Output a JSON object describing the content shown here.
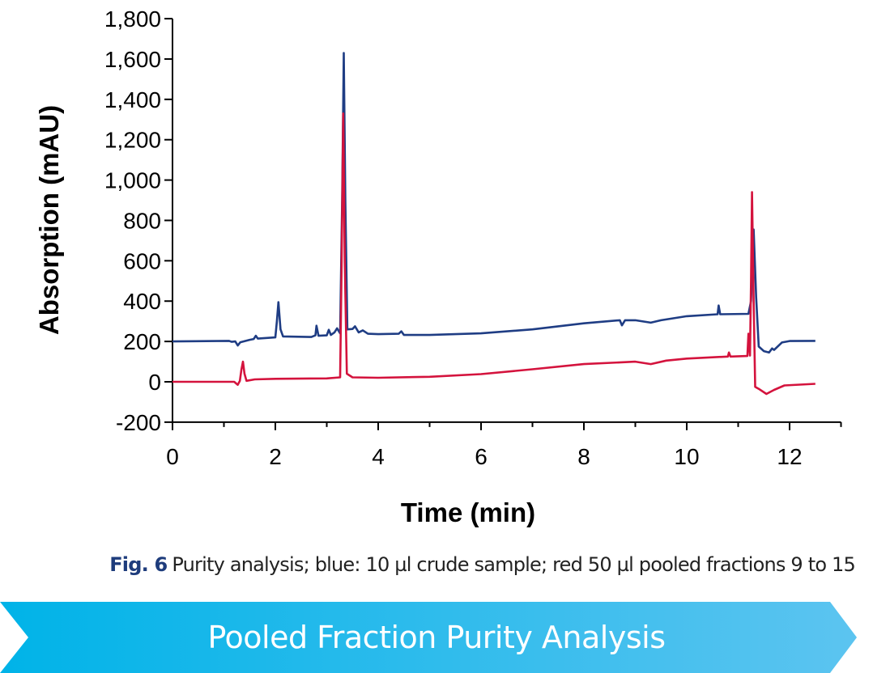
{
  "chart_data": {
    "type": "line",
    "xlabel": "Time (min)",
    "ylabel": "Absorption (mAU)",
    "xlim": [
      0,
      13
    ],
    "ylim": [
      -200,
      1800
    ],
    "xticks": [
      0,
      2,
      4,
      6,
      8,
      10,
      12
    ],
    "yticks": [
      -200,
      0,
      200,
      400,
      600,
      800,
      1000,
      1200,
      1400,
      1600,
      1800
    ],
    "ytick_labels": [
      "-200",
      "0",
      "200",
      "400",
      "600",
      "800",
      "1,000",
      "1,200",
      "1,400",
      "1,600",
      "1,800"
    ],
    "grid": false,
    "series": [
      {
        "color": "#1f3d84",
        "points": [
          [
            0,
            200
          ],
          [
            1.1,
            203
          ],
          [
            1.15,
            198
          ],
          [
            1.22,
            200
          ],
          [
            1.27,
            180
          ],
          [
            1.32,
            196
          ],
          [
            1.5,
            208
          ],
          [
            1.58,
            212
          ],
          [
            1.62,
            228
          ],
          [
            1.66,
            214
          ],
          [
            2.0,
            220
          ],
          [
            2.03,
            300
          ],
          [
            2.06,
            395
          ],
          [
            2.1,
            260
          ],
          [
            2.15,
            225
          ],
          [
            2.7,
            222
          ],
          [
            2.78,
            230
          ],
          [
            2.8,
            278
          ],
          [
            2.84,
            228
          ],
          [
            3.0,
            230
          ],
          [
            3.04,
            258
          ],
          [
            3.08,
            232
          ],
          [
            3.15,
            245
          ],
          [
            3.2,
            265
          ],
          [
            3.26,
            240
          ],
          [
            3.3,
            900
          ],
          [
            3.33,
            1630
          ],
          [
            3.36,
            900
          ],
          [
            3.4,
            260
          ],
          [
            3.5,
            262
          ],
          [
            3.55,
            275
          ],
          [
            3.62,
            245
          ],
          [
            3.7,
            255
          ],
          [
            3.8,
            238
          ],
          [
            4.0,
            236
          ],
          [
            4.4,
            238
          ],
          [
            4.45,
            250
          ],
          [
            4.5,
            232
          ],
          [
            5,
            232
          ],
          [
            6,
            240
          ],
          [
            7,
            260
          ],
          [
            8,
            290
          ],
          [
            8.7,
            305
          ],
          [
            8.74,
            280
          ],
          [
            8.8,
            305
          ],
          [
            9.0,
            305
          ],
          [
            9.3,
            293
          ],
          [
            9.5,
            305
          ],
          [
            10,
            325
          ],
          [
            10.6,
            335
          ],
          [
            10.62,
            378
          ],
          [
            10.65,
            335
          ],
          [
            11.2,
            337
          ],
          [
            11.25,
            400
          ],
          [
            11.3,
            755
          ],
          [
            11.35,
            420
          ],
          [
            11.4,
            175
          ],
          [
            11.5,
            152
          ],
          [
            11.6,
            145
          ],
          [
            11.66,
            165
          ],
          [
            11.7,
            158
          ],
          [
            11.85,
            195
          ],
          [
            12.0,
            202
          ],
          [
            12.5,
            203
          ]
        ]
      },
      {
        "color": "#d4133d",
        "points": [
          [
            0,
            0
          ],
          [
            1.2,
            0
          ],
          [
            1.27,
            -15
          ],
          [
            1.31,
            5
          ],
          [
            1.34,
            60
          ],
          [
            1.37,
            100
          ],
          [
            1.4,
            40
          ],
          [
            1.44,
            5
          ],
          [
            1.6,
            12
          ],
          [
            2,
            15
          ],
          [
            3,
            17
          ],
          [
            3.26,
            22
          ],
          [
            3.29,
            600
          ],
          [
            3.32,
            1330
          ],
          [
            3.35,
            600
          ],
          [
            3.39,
            40
          ],
          [
            3.5,
            22
          ],
          [
            4,
            20
          ],
          [
            5,
            25
          ],
          [
            6,
            38
          ],
          [
            7,
            62
          ],
          [
            8,
            88
          ],
          [
            9,
            100
          ],
          [
            9.3,
            88
          ],
          [
            9.6,
            105
          ],
          [
            10,
            115
          ],
          [
            10.8,
            125
          ],
          [
            10.82,
            145
          ],
          [
            10.85,
            125
          ],
          [
            11.18,
            128
          ],
          [
            11.2,
            238
          ],
          [
            11.23,
            130
          ],
          [
            11.25,
            500
          ],
          [
            11.27,
            940
          ],
          [
            11.3,
            400
          ],
          [
            11.33,
            -25
          ],
          [
            11.4,
            -35
          ],
          [
            11.55,
            -60
          ],
          [
            11.7,
            -40
          ],
          [
            11.9,
            -18
          ],
          [
            12.5,
            -10
          ]
        ]
      }
    ]
  },
  "caption": {
    "fig_label": "Fig. 6",
    "text": "Purity analysis; blue: 10 µl crude sample;  red 50 µl pooled fractions 9 to 15"
  },
  "banner": {
    "title": "Pooled Fraction Purity Analysis",
    "colors": [
      "#00b3e8",
      "#5cc4f0"
    ]
  }
}
